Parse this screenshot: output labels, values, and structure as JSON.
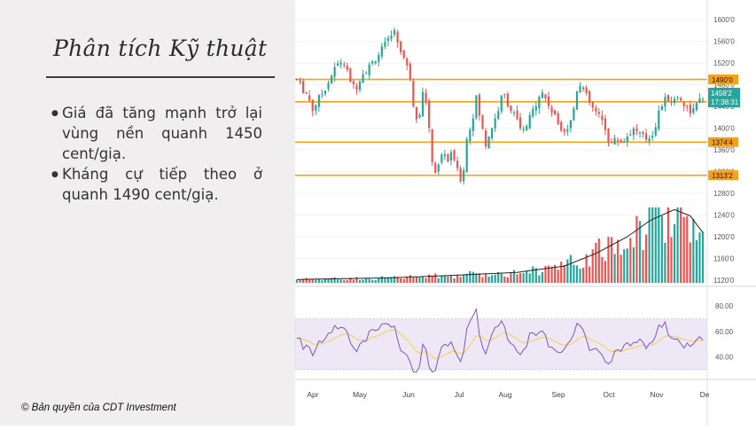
{
  "panel": {
    "title": "Phân tích Kỹ thuật",
    "bullets": [
      "Giá đã tăng mạnh trở lại vùng nền quanh 1450 cent/giạ.",
      "Kháng cự tiếp theo ở quanh 1490 cent/giạ."
    ],
    "copyright": "© Bản quyền của CDT Investment"
  },
  "colors": {
    "up": "#26a69a",
    "down": "#ef5350",
    "level": "#f5a11a",
    "rsi": "#7e57c2",
    "rsi_ma": "#f2d24a",
    "rsi_band": "#ede7f6",
    "last_price": "#26a69a"
  },
  "chart_data": {
    "type": "candlestick",
    "months": [
      "Apr",
      "May",
      "Jun",
      "Jul",
      "Aug",
      "Sep",
      "Oct",
      "Nov",
      "De"
    ],
    "price_axis": {
      "ylim": [
        1120,
        1620
      ],
      "ticks": [
        "1600'0",
        "1560'0",
        "1520'0",
        "1480'0",
        "1440'0",
        "1400'0",
        "1360'0",
        "1320'0",
        "1280'0",
        "1240'0",
        "1200'0",
        "1160'0",
        "1120'0"
      ]
    },
    "levels": [
      {
        "label": "1490'0",
        "value": 1490
      },
      {
        "label": "1448'6",
        "value": 1448.75
      },
      {
        "label": "1374'4",
        "value": 1374.5
      },
      {
        "label": "1313'2",
        "value": 1313.25
      }
    ],
    "last_price": {
      "label": "1458'2",
      "value": 1458.25,
      "time": "17:38:31"
    },
    "price_path": [
      {
        "d": 0,
        "p": 1490
      },
      {
        "d": 3,
        "p": 1475
      },
      {
        "d": 7,
        "p": 1460
      },
      {
        "d": 10,
        "p": 1435
      },
      {
        "d": 14,
        "p": 1455
      },
      {
        "d": 19,
        "p": 1480
      },
      {
        "d": 25,
        "p": 1515
      },
      {
        "d": 29,
        "p": 1525
      },
      {
        "d": 33,
        "p": 1495
      },
      {
        "d": 37,
        "p": 1470
      },
      {
        "d": 41,
        "p": 1500
      },
      {
        "d": 45,
        "p": 1510
      },
      {
        "d": 49,
        "p": 1525
      },
      {
        "d": 54,
        "p": 1545
      },
      {
        "d": 58,
        "p": 1560
      },
      {
        "d": 61,
        "p": 1585
      },
      {
        "d": 64,
        "p": 1560
      },
      {
        "d": 68,
        "p": 1530
      },
      {
        "d": 72,
        "p": 1495
      },
      {
        "d": 75,
        "p": 1420
      },
      {
        "d": 78,
        "p": 1430
      },
      {
        "d": 81,
        "p": 1480
      },
      {
        "d": 84,
        "p": 1395
      },
      {
        "d": 87,
        "p": 1315
      },
      {
        "d": 90,
        "p": 1330
      },
      {
        "d": 93,
        "p": 1360
      },
      {
        "d": 96,
        "p": 1340
      },
      {
        "d": 99,
        "p": 1355
      },
      {
        "d": 102,
        "p": 1320
      },
      {
        "d": 105,
        "p": 1300
      },
      {
        "d": 108,
        "p": 1380
      },
      {
        "d": 111,
        "p": 1410
      },
      {
        "d": 114,
        "p": 1455
      },
      {
        "d": 117,
        "p": 1410
      },
      {
        "d": 120,
        "p": 1370
      },
      {
        "d": 123,
        "p": 1395
      },
      {
        "d": 127,
        "p": 1425
      },
      {
        "d": 131,
        "p": 1465
      },
      {
        "d": 135,
        "p": 1440
      },
      {
        "d": 139,
        "p": 1420
      },
      {
        "d": 143,
        "p": 1390
      },
      {
        "d": 147,
        "p": 1410
      },
      {
        "d": 151,
        "p": 1440
      },
      {
        "d": 155,
        "p": 1470
      },
      {
        "d": 159,
        "p": 1450
      },
      {
        "d": 163,
        "p": 1425
      },
      {
        "d": 167,
        "p": 1405
      },
      {
        "d": 171,
        "p": 1395
      },
      {
        "d": 175,
        "p": 1420
      },
      {
        "d": 179,
        "p": 1490
      },
      {
        "d": 183,
        "p": 1465
      },
      {
        "d": 187,
        "p": 1440
      },
      {
        "d": 191,
        "p": 1425
      },
      {
        "d": 195,
        "p": 1410
      },
      {
        "d": 199,
        "p": 1370
      },
      {
        "d": 203,
        "p": 1380
      },
      {
        "d": 207,
        "p": 1375
      },
      {
        "d": 211,
        "p": 1390
      },
      {
        "d": 215,
        "p": 1400
      },
      {
        "d": 219,
        "p": 1385
      },
      {
        "d": 223,
        "p": 1380
      },
      {
        "d": 227,
        "p": 1395
      },
      {
        "d": 231,
        "p": 1440
      },
      {
        "d": 235,
        "p": 1455
      },
      {
        "d": 239,
        "p": 1450
      },
      {
        "d": 243,
        "p": 1460
      },
      {
        "d": 247,
        "p": 1440
      },
      {
        "d": 251,
        "p": 1430
      },
      {
        "d": 255,
        "p": 1445
      },
      {
        "d": 258,
        "p": 1458
      }
    ],
    "volume_path": [
      {
        "d": 0,
        "v": 8
      },
      {
        "d": 60,
        "v": 12
      },
      {
        "d": 100,
        "v": 18
      },
      {
        "d": 140,
        "v": 25
      },
      {
        "d": 170,
        "v": 40
      },
      {
        "d": 190,
        "v": 70
      },
      {
        "d": 210,
        "v": 110
      },
      {
        "d": 225,
        "v": 150
      },
      {
        "d": 240,
        "v": 175
      },
      {
        "d": 250,
        "v": 160
      },
      {
        "d": 258,
        "v": 120
      }
    ],
    "rsi_axis": {
      "ylim": [
        25,
        85
      ],
      "ticks": [
        "80.00",
        "60.00",
        "40.00"
      ]
    },
    "rsi_bands": [
      30,
      70
    ]
  }
}
